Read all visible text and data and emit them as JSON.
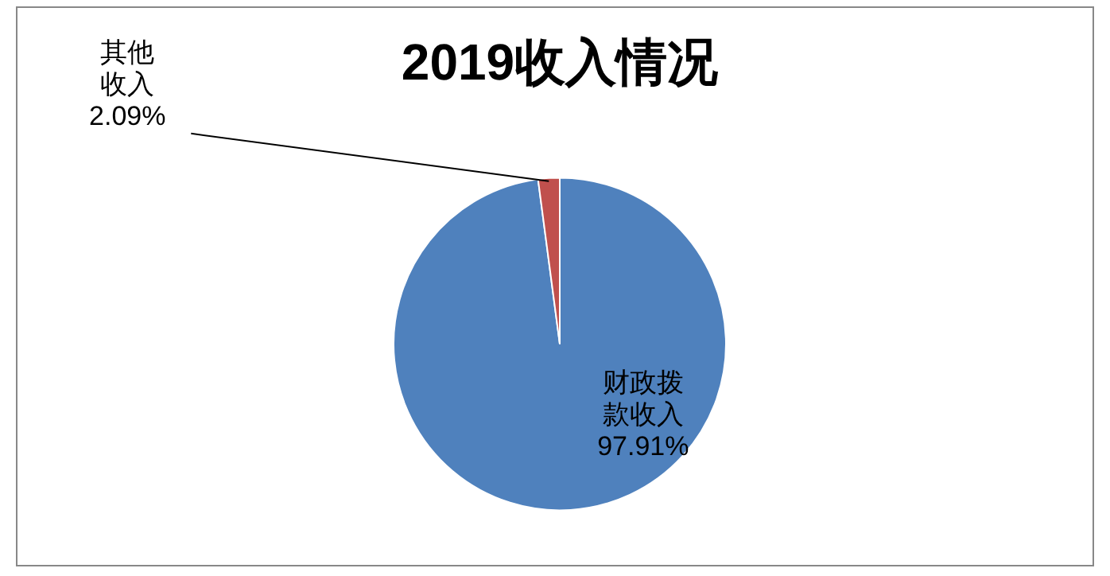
{
  "chart_data": {
    "type": "pie",
    "title": "2019收入情况",
    "categories": [
      "财政拨款收入",
      "其他收入"
    ],
    "values": [
      97.91,
      2.09
    ],
    "colors": [
      "#4f81bd",
      "#c0504d"
    ],
    "value_labels": [
      "97.91%",
      "2.09%"
    ],
    "legend": false
  }
}
